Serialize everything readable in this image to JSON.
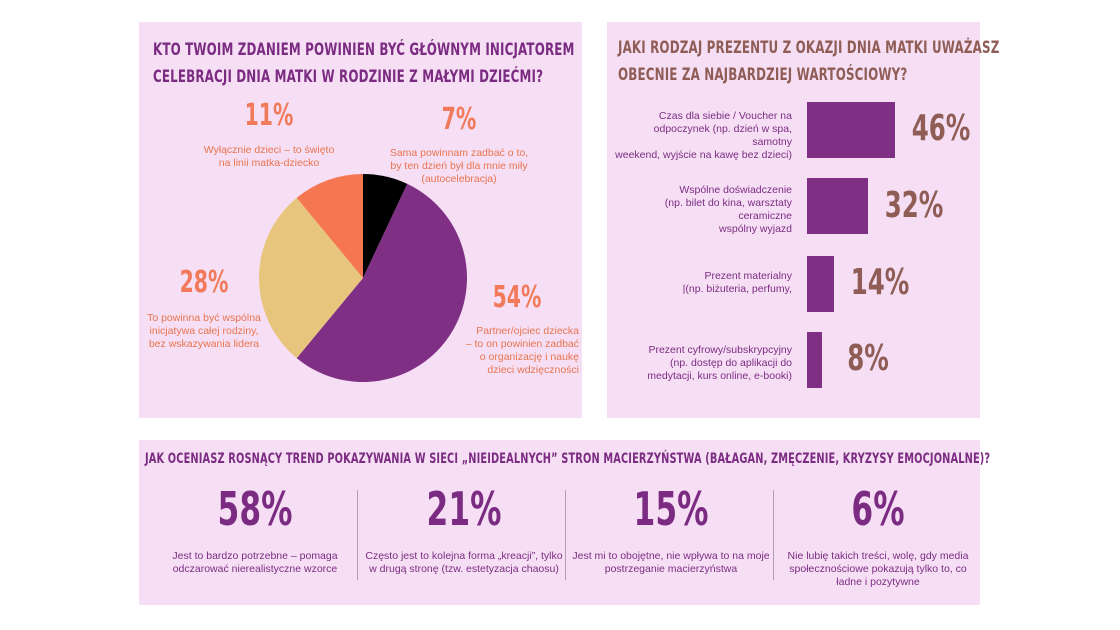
{
  "pie_panel": {
    "title_line1": "KTO TWOIM ZDANIEM POWINIEN BYĆ GŁÓWNYM INICJATOREM",
    "title_line2": "CELEBRACJI DNIA MATKI  W RODZINIE Z MAŁYMI DZIEĆMI?"
  },
  "bars_panel": {
    "title_line1": "JAKI RODZAJ PREZENTU Z OKAZJI DNIA MATKI UWAŻASZ",
    "title_line2": "OBECNIE ZA NAJBARDZIEJ WARTOŚCIOWY?"
  },
  "trend_panel": {
    "title": "JAK OCENIASZ ROSNĄCY TREND POKAZYWANIA W SIECI „NIEIDEALNYCH” STRON MACIERZYŃSTWA (BAŁAGAN, ZMĘCZENIE, KRYZYSY EMOCJONALNE)?"
  },
  "colors": {
    "purple": "#7f2f84",
    "sand": "#e8c57d",
    "coral": "#f47752",
    "black": "#000000",
    "panel_bg": "#f6dff4",
    "brown": "#8f5d55"
  },
  "chart_data": [
    {
      "type": "pie",
      "title": "KTO TWOIM ZDANIEM POWINIEN BYĆ GŁÓWNYM INICJATOREM CELEBRACJI DNIA MATKI  W RODZINIE Z MAŁYMI DZIEĆMI?",
      "slices": [
        {
          "pct_label": "7%",
          "value": 7,
          "color": "#000000",
          "label": "Sama powinnam zadbać o to,\nby ten dzień był dla mnie miły\n(autocelebracja)"
        },
        {
          "pct_label": "54%",
          "value": 54,
          "color": "#7f2f84",
          "label": "Partner/ojciec dziecka\n– to on powinien zadbać\no organizację i naukę\ndzieci wdzięczności"
        },
        {
          "pct_label": "28%",
          "value": 28,
          "color": "#e8c57d",
          "label": "To powinna być wspólna\ninicjatywa całej rodziny,\nbez wskazywania lidera"
        },
        {
          "pct_label": "11%",
          "value": 11,
          "color": "#f47752",
          "label": "Wyłącznie dzieci – to święto\nna linii matka-dziecko"
        }
      ]
    },
    {
      "type": "bar",
      "title": "JAKI RODZAJ PREZENTU Z OKAZJI DNIA MATKI UWAŻASZ OBECNIE ZA NAJBARDZIEJ WARTOŚCIOWY?",
      "orientation": "horizontal",
      "categories": [
        "Czas dla siebie / Voucher na\nodpoczynek (np. dzień w spa, samotny\nweekend, wyjście na kawę bez dzieci)",
        "Wspólne doświadczenie\n(np. bilet do kina, warsztaty ceramiczne\nwspólny wyjazd",
        "Prezent materialny\n|(np. biżuteria, perfumy,",
        "Prezent cyfrowy/subskrypcyjny\n(np. dostęp do aplikacji do\nmedytacji, kurs online, e-booki)"
      ],
      "values": [
        46,
        32,
        14,
        8
      ],
      "value_labels": [
        "46%",
        "32%",
        "14%",
        "8%"
      ],
      "color": "#7f2f84"
    },
    {
      "type": "table",
      "title": "JAK OCENIASZ ROSNĄCY TREND POKAZYWANIA W SIECI „NIEIDEALNYCH” STRON MACIERZYŃSTWA (BAŁAGAN, ZMĘCZENIE, KRYZYSY EMOCJONALNE)?",
      "items": [
        {
          "pct_label": "58%",
          "value": 58,
          "label": "Jest to bardzo potrzebne – pomaga\nodczarować nierealistyczne  wzorce"
        },
        {
          "pct_label": "21%",
          "value": 21,
          "label": "Często jest to kolejna forma „kreacji”, tylko\nw drugą stronę (tzw. estetyzacja chaosu)"
        },
        {
          "pct_label": "15%",
          "value": 15,
          "label": "Jest mi to obojętne, nie wpływa to na moje\npostrzeganie macierzyństwa"
        },
        {
          "pct_label": "6%",
          "value": 6,
          "label": "Nie lubię takich treści, wolę, gdy media\nspołecznościowe pokazują tylko to, co\nładne i pozytywne"
        }
      ]
    }
  ]
}
